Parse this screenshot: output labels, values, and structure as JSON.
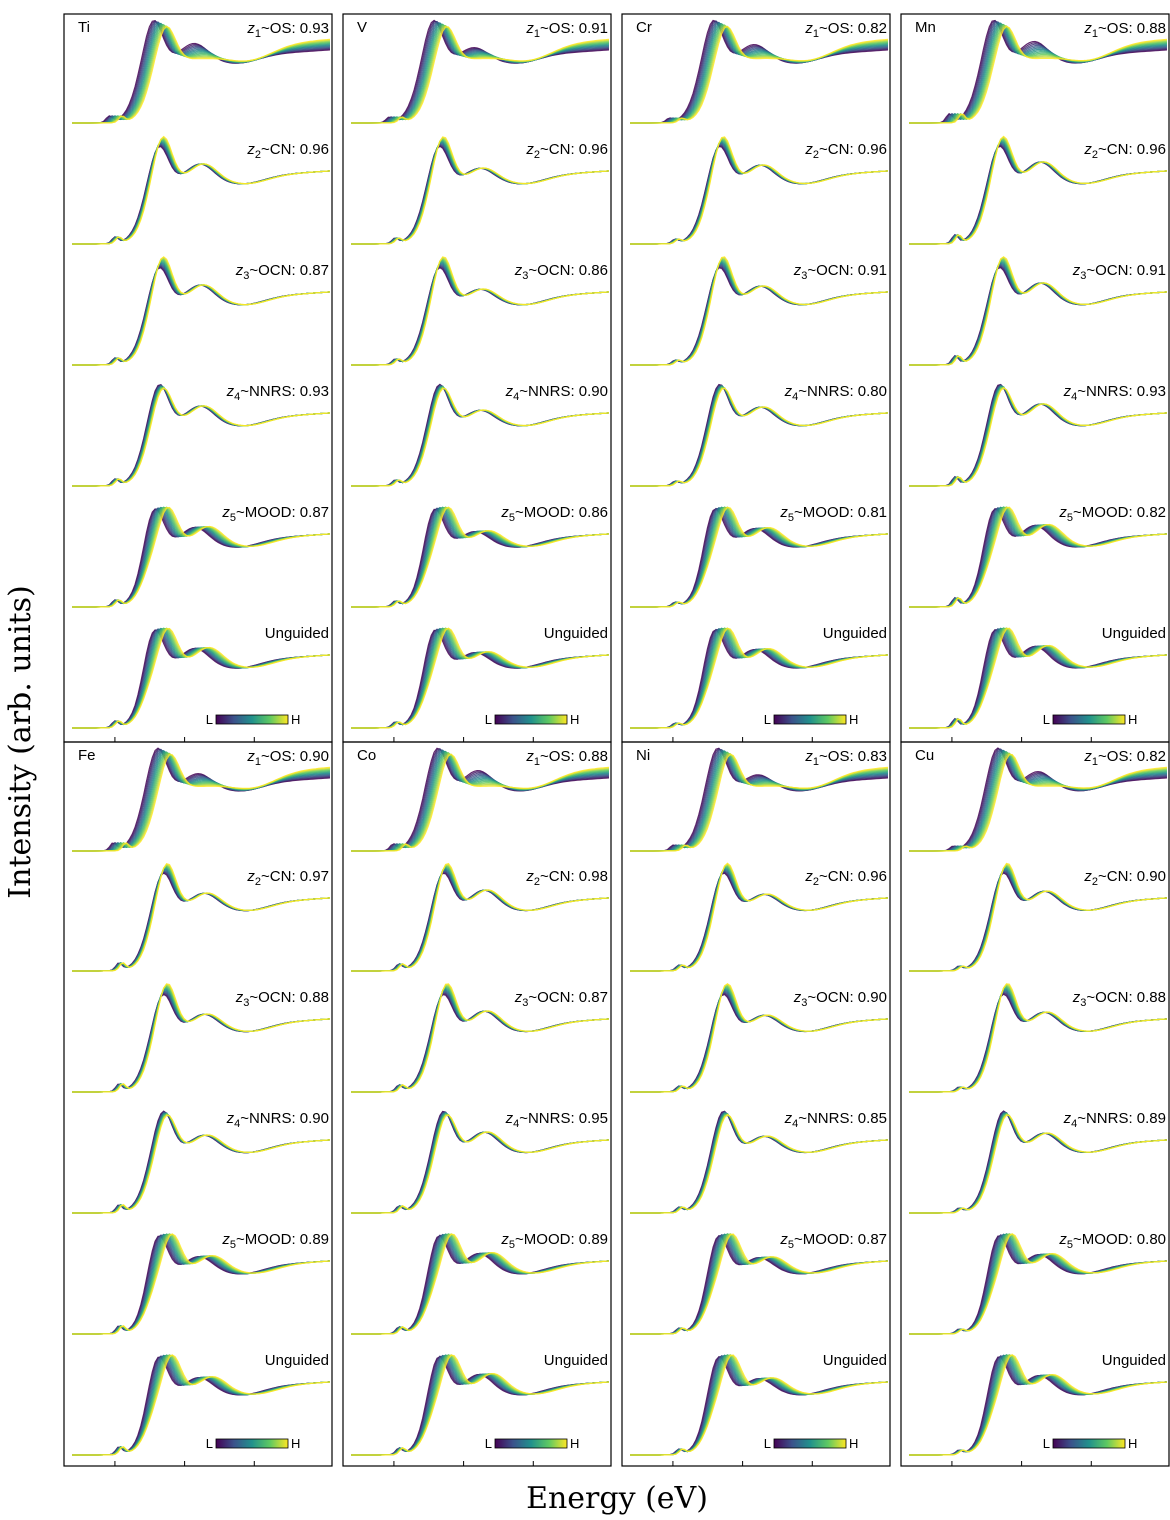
{
  "chart_data": {
    "type": "line",
    "title": "",
    "ylabel": "Intensity (arb. units)",
    "xlabel": "Energy (eV)",
    "colormap": [
      "#440154",
      "#3b528b",
      "#21918c",
      "#5ec962",
      "#fde725"
    ],
    "colorbar": {
      "low_label": "L",
      "high_label": "H"
    },
    "grid": false,
    "row_labels": [
      {
        "sym": "z",
        "sub": "1",
        "desc": "~OS"
      },
      {
        "sym": "z",
        "sub": "2",
        "desc": "~CN"
      },
      {
        "sym": "z",
        "sub": "3",
        "desc": "~OCN"
      },
      {
        "sym": "z",
        "sub": "4",
        "desc": "~NNRS"
      },
      {
        "sym": "z",
        "sub": "5",
        "desc": "~MOOD"
      },
      {
        "sym": "",
        "sub": "",
        "desc": "Unguided"
      }
    ],
    "panels": [
      {
        "element": "Ti",
        "scores": [
          ": 0.93",
          ": 0.96",
          ": 0.87",
          ": 0.93",
          ": 0.87",
          ""
        ]
      },
      {
        "element": "V",
        "scores": [
          ": 0.91",
          ": 0.96",
          ": 0.86",
          ": 0.90",
          ": 0.86",
          ""
        ]
      },
      {
        "element": "Cr",
        "scores": [
          ": 0.82",
          ": 0.96",
          ": 0.91",
          ": 0.80",
          ": 0.81",
          ""
        ]
      },
      {
        "element": "Mn",
        "scores": [
          ": 0.88",
          ": 0.96",
          ": 0.91",
          ": 0.93",
          ": 0.82",
          ""
        ]
      },
      {
        "element": "Fe",
        "scores": [
          ": 0.90",
          ": 0.97",
          ": 0.88",
          ": 0.90",
          ": 0.89",
          ""
        ]
      },
      {
        "element": "Co",
        "scores": [
          ": 0.88",
          ": 0.98",
          ": 0.87",
          ": 0.95",
          ": 0.89",
          ""
        ]
      },
      {
        "element": "Ni",
        "scores": [
          ": 0.83",
          ": 0.96",
          ": 0.90",
          ": 0.85",
          ": 0.87",
          ""
        ]
      },
      {
        "element": "Cu",
        "scores": [
          ": 0.82",
          ": 0.90",
          ": 0.88",
          ": 0.89",
          ": 0.80",
          ""
        ]
      }
    ]
  }
}
